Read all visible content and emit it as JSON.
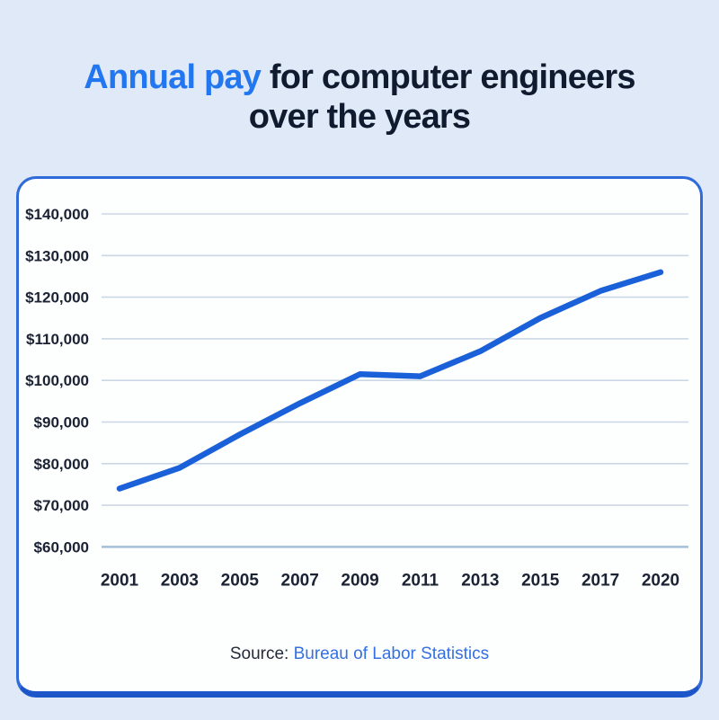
{
  "title": {
    "accent": "Annual pay",
    "rest": "for computer engineers",
    "line2": "over the years"
  },
  "chart_data": {
    "type": "line",
    "title": "Annual pay for computer engineers over the years",
    "x": [
      2001,
      2003,
      2005,
      2007,
      2009,
      2011,
      2013,
      2015,
      2017,
      2020
    ],
    "x_tick_labels": [
      "2001",
      "2003",
      "2005",
      "2007",
      "2009",
      "2011",
      "2013",
      "2015",
      "2017",
      "2020"
    ],
    "series": [
      {
        "name": "Annual pay",
        "values": [
          74000,
          79000,
          87000,
          94500,
          101500,
          101000,
          107000,
          115000,
          121500,
          126000
        ]
      }
    ],
    "y_ticks": [
      140000,
      130000,
      120000,
      110000,
      100000,
      90000,
      80000,
      70000,
      60000
    ],
    "y_tick_labels": [
      "$140,000",
      "$130,000",
      "$120,000",
      "$110,000",
      "$100,000",
      "$90,000",
      "$80,000",
      "$70,000",
      "$60,000"
    ],
    "ylim": [
      60000,
      140000
    ],
    "grid": "horizontal",
    "legend": "none",
    "line_color": "#1a60d8",
    "gridline_color": "#ccd7e6",
    "baseline_color": "#a4bfda",
    "tick_label_color": "#1a2233"
  },
  "source": {
    "label": "Source:",
    "link_text": "Bureau of Labor Statistics"
  },
  "colors": {
    "background": "#dfe9f7",
    "card_background": "#fdfefe",
    "card_border": "#2f6bd9",
    "card_border_bottom": "#1c56c9",
    "title_accent": "#2277f0",
    "title_dark": "#111b30",
    "source_link": "#3470e2"
  }
}
